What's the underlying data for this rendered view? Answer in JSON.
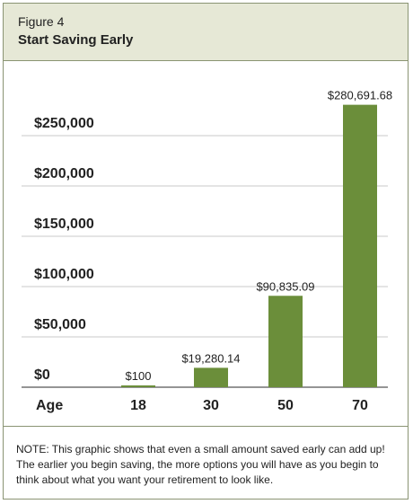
{
  "figure": {
    "label": "Figure 4",
    "title": "Start Saving Early"
  },
  "chart_data": {
    "type": "bar",
    "xlabel": "Age",
    "ylabel": "",
    "categories": [
      "18",
      "30",
      "50",
      "70"
    ],
    "values": [
      100,
      19280.14,
      90835.09,
      280691.68
    ],
    "value_labels": [
      "$100",
      "$19,280.14",
      "$90,835.09",
      "$280,691.68"
    ],
    "ylim": [
      0,
      290000
    ],
    "yticks": [
      0,
      50000,
      100000,
      150000,
      200000,
      250000
    ],
    "ytick_labels": [
      "$0",
      "$50,000",
      "$100,000",
      "$150,000",
      "$200,000",
      "$250,000"
    ],
    "grid": true,
    "bar_color": "#6b8e3a"
  },
  "note": "NOTE: This graphic shows that even a small amount saved early can add up! The earlier you begin saving, the more options you will have as you begin to think about what you want your retirement to look like."
}
